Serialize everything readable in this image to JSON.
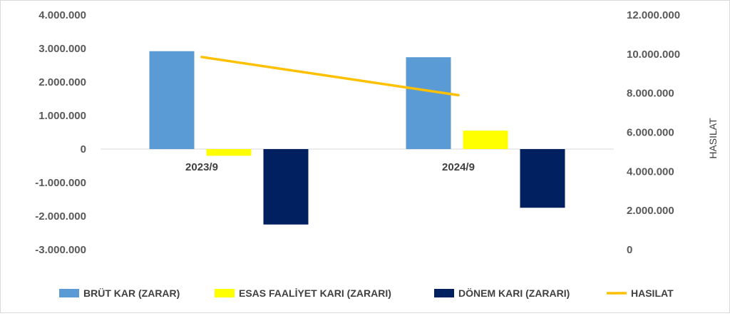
{
  "chart_data": {
    "type": "bar",
    "categories": [
      "2023/9",
      "2024/9"
    ],
    "series": [
      {
        "name": "BRÜT KAR (ZARAR)",
        "type": "bar",
        "axis": "left",
        "color": "#5b9bd5",
        "values": [
          2920000,
          2740000
        ]
      },
      {
        "name": "ESAS FAALİYET KARI (ZARARI)",
        "type": "bar",
        "axis": "left",
        "color": "#ffff00",
        "values": [
          -200000,
          550000
        ]
      },
      {
        "name": "DÖNEM KARI (ZARARI)",
        "type": "bar",
        "axis": "left",
        "color": "#002060",
        "values": [
          -2250000,
          -1750000
        ]
      },
      {
        "name": "HASILAT",
        "type": "line",
        "axis": "right",
        "color": "#ffc000",
        "values": [
          9850000,
          7900000
        ]
      }
    ],
    "y_left": {
      "min": -3000000,
      "max": 4000000,
      "step": 1000000,
      "ticks": [
        "4.000.000",
        "3.000.000",
        "2.000.000",
        "1.000.000",
        "0",
        "-1.000.000",
        "-2.000.000",
        "-3.000.000"
      ]
    },
    "y_right": {
      "label": "HASILAT",
      "min": 0,
      "max": 12000000,
      "step": 2000000,
      "ticks": [
        "12.000.000",
        "10.000.000",
        "8.000.000",
        "6.000.000",
        "4.000.000",
        "2.000.000",
        "0"
      ]
    },
    "grid": false,
    "legend": "bottom"
  }
}
